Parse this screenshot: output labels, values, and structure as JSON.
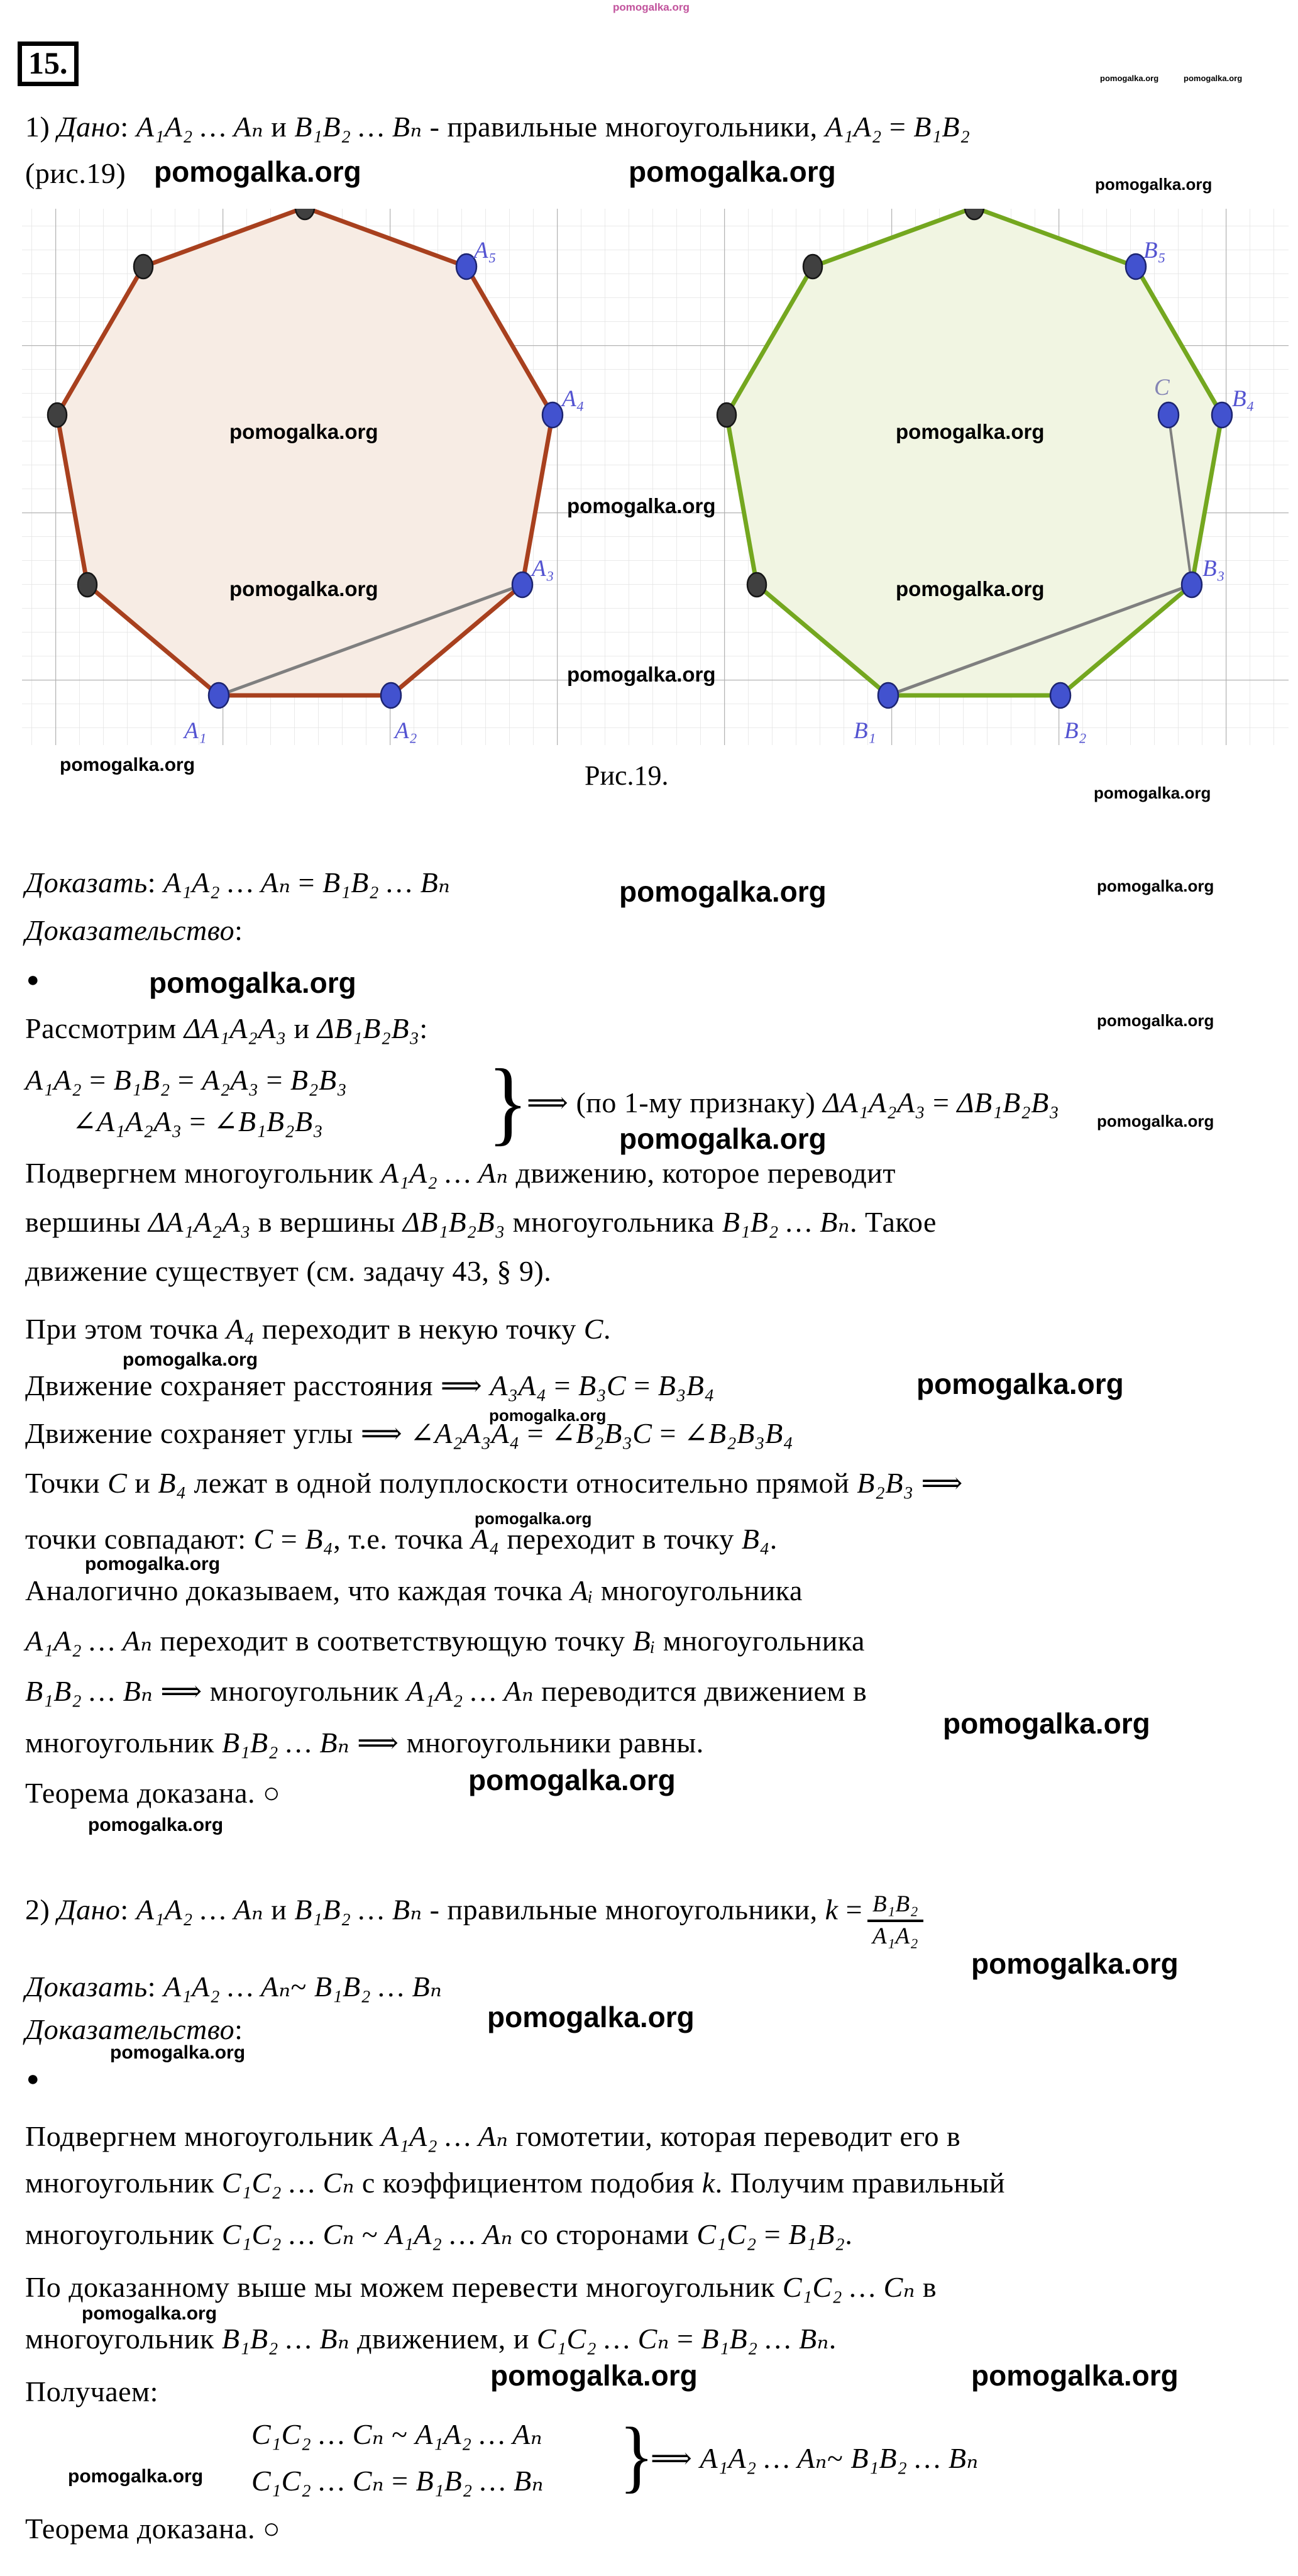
{
  "watermark": {
    "text": "pomogalka.org",
    "color_black": "#000000",
    "color_pink": "#c2519c"
  },
  "header": {
    "problem_number": "15."
  },
  "figure": {
    "caption": "Рис.19.",
    "grid_minor_color": "#e3e3e3",
    "grid_major_color": "#b3b3b3",
    "left_polygon": {
      "stroke": "#a8401e",
      "fill": "#f7ece4"
    },
    "right_polygon": {
      "stroke": "#74a71f",
      "fill": "#f1f5e2"
    },
    "gray_segment_color": "#7f7f7f",
    "point_blue": "#4252cf",
    "point_dark": "#404040",
    "label_color": "#5353d1",
    "labels": {
      "a1": "A₁",
      "a2": "A₂",
      "a3": "A₃",
      "a4": "A₄",
      "a5": "A₅",
      "b1": "B₁",
      "b2": "B₂",
      "b3": "B₃",
      "b4": "B₄",
      "b5": "B₅",
      "c": "C"
    }
  },
  "lines": {
    "l1": "1) <i>Дано</i>: <i>A₁A₂ … Aₙ</i> и <i>B₁B₂ … Bₙ</i> - правильные многоугольники, <i>A₁A₂</i> = <i>B₁B₂</i>",
    "l2": "(рис.19)",
    "prove1": "<i>Доказать</i>: <i>A₁A₂ … Aₙ</i> =  <i>B₁B₂ … Bₙ</i>",
    "proofLabel": "<i>Доказательство</i>:",
    "bullet": "●",
    "consider": "Рассмотрим <i>ΔA₁A₂A₃</i> и <i>ΔB₁B₂B₃</i>:",
    "sys1a": "<i>A₁A₂</i> = <i>B₁B₂</i> = <i>A₂A₃</i> = <i>B₂B₃</i>",
    "sys1b": "∠<i>A₁A₂A₃</i> = ∠<i>B₁B₂B₃</i>",
    "sys1r": "⟹ (по 1-му признаку) <i>ΔA₁A₂A₃</i> =  <i>ΔB₁B₂B₃</i>",
    "p1l1": "Подвергнем многоугольник <i>A₁A₂ … Aₙ</i> движению, которое переводит",
    "p1l2": "вершины <i>ΔA₁A₂A₃</i> в вершины <i>ΔB₁B₂B₃</i> многоугольника <i>B₁B₂ … Bₙ</i>. Такое",
    "p1l3": "движение существует (см. задачу 43, § 9).",
    "p2": "При этом точка <i>A₄</i> переходит в некую точку <i>C</i>.",
    "p3": "Движение сохраняет расстояния ⟹ <i>A₃A₄</i> = <i>B₃C</i> = <i>B₃B₄</i>",
    "p4": "Движение сохраняет углы ⟹  ∠<i>A₂A₃A₄</i> = ∠<i>B₂B₃C</i> = ∠<i>B₂B₃B₄</i>",
    "p5l1": "Точки <i>C</i> и <i>B₄</i> лежат в одной полуплоскости относительно прямой <i>B₂B₃</i> ⟹",
    "p5l2": "точки совпадают: <i>C</i> =  <i>B₄</i>, т.е. точка <i>A₄</i> переходит в точку <i>B₄</i>.",
    "p6l1": "Аналогично доказываем, что каждая точка <i>Aᵢ</i> многоугольника",
    "p6l2": "<i>A₁A₂ … Aₙ</i> переходит в соответствующую точку <i>Bᵢ</i> многоугольника",
    "p6l3": "<i>B₁B₂ … Bₙ</i>  ⟹ многоугольник <i>A₁A₂ … Aₙ</i> переводится движением в",
    "p6l4": "многоугольник <i>B₁B₂ … Bₙ</i> ⟹ многоугольники равны.",
    "qed1": "Теорема доказана.  ○",
    "part2pre": "2) <i>Дано</i>: <i>A₁A₂ … Aₙ</i> и <i>B₁B₂ … Bₙ</i> - правильные многоугольники, <i>k</i> =",
    "fracNum": "B₁B₂",
    "fracDen": "A₁A₂",
    "prove2": "<i>Доказать</i>: <i>A₁A₂ … Aₙ</i>~ <i>B₁B₂ … Bₙ</i>",
    "proofLabel2": "<i>Доказательство</i>:",
    "q1l1": "Подвергнем многоугольник <i>A₁A₂ … Aₙ</i> гомотетии, которая переводит его в",
    "q1l2": "многоугольник <i>C₁C₂ … Cₙ</i> с коэффициентом подобия <i>k</i>. Получим правильный",
    "q1l3": "многоугольник <i>C₁C₂ … Cₙ</i> ~ <i>A₁A₂ … Aₙ</i> со сторонами <i>C₁C₂</i> = <i>B₁B₂</i>.",
    "q2l1": "По доказанному выше мы можем перевести многоугольник <i>C₁C₂ … Cₙ</i> в",
    "q2l2": "многоугольник <i>B₁B₂ … Bₙ</i> движением, и <i>C₁C₂ … Cₙ</i> = <i>B₁B₂ … Bₙ</i>.",
    "q3": "Получаем:",
    "sys2a": "<i>C₁C₂ … Cₙ</i> ~ <i>A₁A₂ … Aₙ</i>",
    "sys2b": "<i>C₁C₂ … Cₙ</i> = <i>B₁B₂ … Bₙ</i>",
    "sys2r": "⟹ <i>A₁A₂ … Aₙ</i>~ <i>B₁B₂ … Bₙ</i>",
    "qed2": "Теорема доказана.  ○"
  }
}
